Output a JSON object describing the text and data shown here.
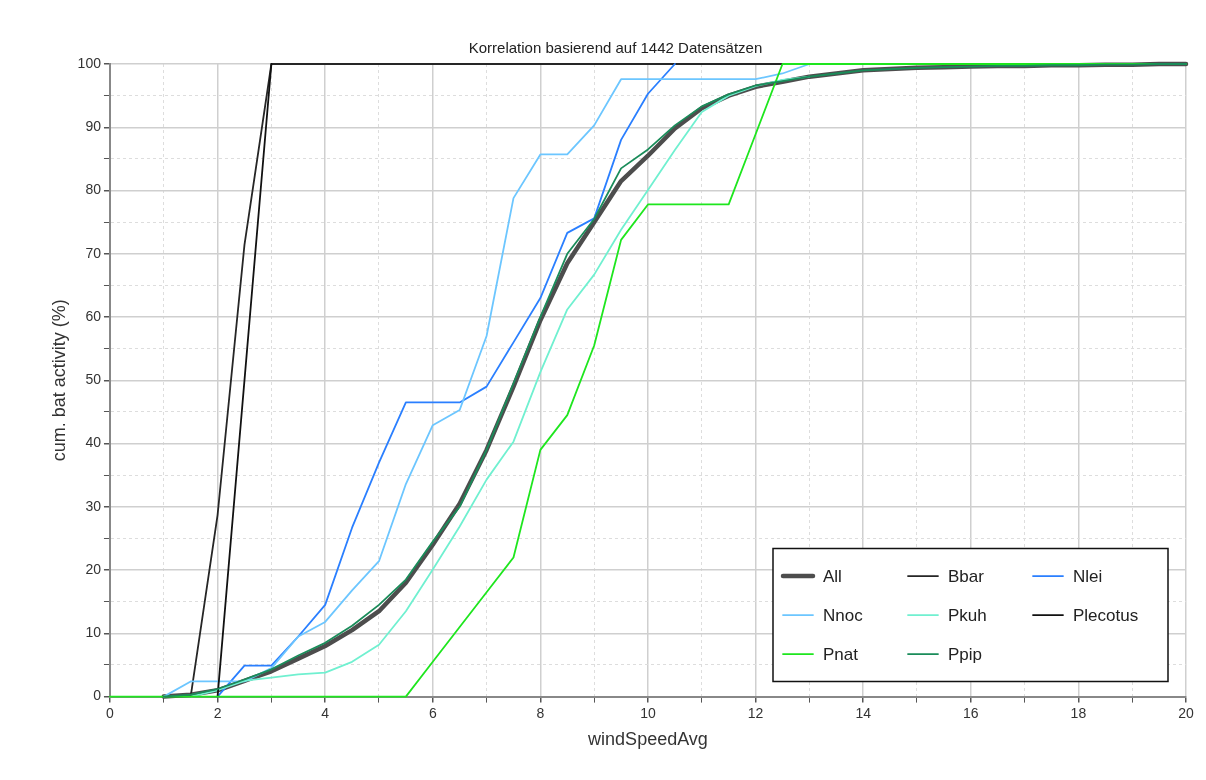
{
  "chart_data": {
    "type": "line",
    "title": "Korrelation basierend auf 1442 Datensätzen",
    "xlabel": "windSpeedAvg",
    "ylabel": "cum. bat activity (%)",
    "x": [
      0,
      0.5,
      1,
      1.5,
      2,
      2.5,
      3,
      3.5,
      4,
      4.5,
      5,
      5.5,
      6,
      6.5,
      7,
      7.5,
      8,
      8.5,
      9,
      9.5,
      10,
      10.5,
      11,
      11.5,
      12,
      12.5,
      13,
      13.5,
      14,
      14.5,
      15,
      15.5,
      16,
      16.5,
      17,
      17.5,
      18,
      18.5,
      19,
      19.5,
      20
    ],
    "xlim": [
      0,
      20
    ],
    "ylim": [
      0,
      100
    ],
    "xticks": [
      0,
      {
        "value": 1,
        "label": null
      },
      2,
      {
        "value": 3,
        "label": null
      },
      4,
      {
        "value": 5,
        "label": null
      },
      6,
      {
        "value": 7,
        "label": null
      },
      8,
      {
        "value": 9,
        "label": null
      },
      10,
      {
        "value": 11,
        "label": null
      },
      12,
      {
        "value": 13,
        "label": null
      },
      14,
      {
        "value": 15,
        "label": null
      },
      16,
      {
        "value": 17,
        "label": null
      },
      18,
      {
        "value": 19,
        "label": null
      },
      20
    ],
    "yticks": [
      0,
      {
        "value": 5,
        "label": null
      },
      10,
      {
        "value": 15,
        "label": null
      },
      20,
      {
        "value": 25,
        "label": null
      },
      30,
      {
        "value": 35,
        "label": null
      },
      40,
      {
        "value": 45,
        "label": null
      },
      50,
      {
        "value": 55,
        "label": null
      },
      60,
      {
        "value": 65,
        "label": null
      },
      70,
      {
        "value": 75,
        "label": null
      },
      80,
      {
        "value": 85,
        "label": null
      },
      90,
      {
        "value": 95,
        "label": null
      },
      100
    ],
    "grid": true,
    "legend": "bottom right",
    "marker": "none",
    "line_style": "solid",
    "series": [
      {
        "name": "All",
        "color": "#4d4d4d",
        "values": [
          null,
          null,
          0,
          0.3,
          1,
          2.5,
          4,
          6,
          8,
          10.5,
          13.5,
          18,
          24,
          30.5,
          39,
          49,
          59.5,
          68.5,
          75,
          81.5,
          85.5,
          89.8,
          93,
          95,
          96.4,
          97.2,
          98,
          98.5,
          99,
          99.2,
          99.4,
          99.5,
          99.6,
          99.7,
          99.7,
          99.8,
          99.8,
          99.9,
          99.9,
          100,
          100
        ]
      },
      {
        "name": "Bbar",
        "color": "#262626",
        "values": [
          null,
          null,
          null,
          0,
          28.7,
          71.4,
          100,
          100,
          100,
          100,
          100,
          100,
          100,
          100,
          100,
          100,
          100,
          100,
          100,
          100,
          100,
          100,
          100,
          100,
          100,
          100,
          null,
          null,
          null,
          null,
          null,
          null,
          null,
          null,
          null,
          null,
          null,
          null,
          null,
          null,
          null
        ]
      },
      {
        "name": "Nlei",
        "color": "#2a7fff",
        "values": [
          null,
          null,
          null,
          null,
          0,
          4.9,
          4.9,
          9.5,
          14.5,
          26.7,
          37,
          46.5,
          46.5,
          46.5,
          49,
          56,
          63,
          73.3,
          75.6,
          88,
          95.3,
          100,
          null,
          null,
          null,
          null,
          null,
          null,
          null,
          null,
          null,
          null,
          null,
          null,
          null,
          null,
          null,
          null,
          null,
          null,
          null
        ]
      },
      {
        "name": "Nnoc",
        "color": "#6cc6ff",
        "values": [
          null,
          null,
          0,
          2.4,
          2.4,
          2.4,
          4.5,
          9.5,
          11.8,
          16.8,
          21.4,
          33.6,
          42.9,
          45.3,
          57,
          78.8,
          85.7,
          85.7,
          90.3,
          97.6,
          97.6,
          97.6,
          97.6,
          97.6,
          97.6,
          98.5,
          100,
          null,
          null,
          null,
          null,
          null,
          null,
          null,
          null,
          null,
          null,
          null,
          null,
          null,
          null
        ]
      },
      {
        "name": "Pkuh",
        "color": "#70f0d0",
        "values": [
          null,
          null,
          null,
          0,
          1,
          2.5,
          3,
          3.5,
          3.8,
          5.5,
          8.2,
          13.5,
          20.1,
          26.9,
          34.3,
          40.3,
          51.3,
          61.2,
          66.7,
          73.8,
          80.1,
          86.4,
          92.4,
          95,
          96.5,
          97.5,
          98,
          null,
          null,
          null,
          null,
          null,
          null,
          null,
          null,
          null,
          null,
          null,
          null,
          null,
          null
        ]
      },
      {
        "name": "Plecotus",
        "color": "#111111",
        "values": [
          null,
          null,
          null,
          null,
          0,
          50,
          100,
          null,
          null,
          null,
          null,
          null,
          null,
          null,
          null,
          null,
          null,
          null,
          null,
          null,
          null,
          null,
          null,
          null,
          null,
          null,
          null,
          null,
          null,
          null,
          null,
          null,
          null,
          null,
          null,
          null,
          null,
          null,
          null,
          null,
          null
        ]
      },
      {
        "name": "Pnat",
        "color": "#1ee61e",
        "values": [
          0,
          0,
          0,
          0,
          0,
          0,
          0,
          0,
          0,
          0,
          0,
          0,
          5.5,
          11,
          16.5,
          22,
          39,
          44.5,
          55.5,
          72.2,
          77.8,
          77.8,
          77.8,
          77.8,
          88.9,
          100,
          100,
          100,
          100,
          100,
          100,
          100,
          100,
          100,
          100,
          100,
          100,
          100,
          100,
          100,
          100
        ]
      },
      {
        "name": "Ppip",
        "color": "#1a8c5a",
        "values": [
          null,
          null,
          0,
          0.3,
          1.2,
          2.7,
          4.3,
          6.5,
          8.5,
          11.2,
          14.5,
          18.5,
          24.5,
          30,
          39,
          49.5,
          60,
          70,
          75.5,
          83.5,
          86.5,
          90.3,
          93.3,
          95.2,
          96.6,
          97.3,
          98,
          98.5,
          99,
          99.2,
          99.4,
          99.5,
          99.6,
          99.7,
          99.7,
          99.8,
          99.8,
          99.9,
          99.9,
          100,
          100
        ]
      }
    ]
  }
}
